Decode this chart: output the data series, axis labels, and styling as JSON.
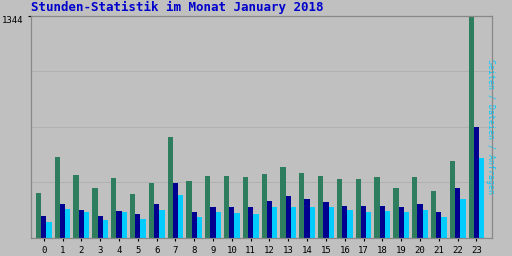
{
  "title": "Stunden-Statistik im Monat January 2018",
  "title_color": "#0000cc",
  "hours": [
    0,
    1,
    2,
    3,
    4,
    5,
    6,
    7,
    8,
    9,
    10,
    11,
    12,
    13,
    14,
    15,
    16,
    17,
    18,
    19,
    20,
    21,
    22,
    23
  ],
  "seiten": [
    270,
    490,
    380,
    300,
    365,
    265,
    335,
    610,
    345,
    375,
    375,
    368,
    385,
    430,
    395,
    375,
    355,
    358,
    368,
    305,
    368,
    285,
    468,
    1344
  ],
  "dateien": [
    135,
    205,
    170,
    135,
    165,
    145,
    205,
    335,
    155,
    185,
    185,
    185,
    225,
    255,
    235,
    215,
    195,
    195,
    195,
    190,
    205,
    155,
    305,
    670
  ],
  "anfragen": [
    95,
    178,
    155,
    110,
    155,
    115,
    170,
    260,
    125,
    158,
    150,
    145,
    190,
    185,
    185,
    185,
    170,
    158,
    165,
    158,
    170,
    125,
    235,
    485
  ],
  "color_seiten": "#2e7d5e",
  "color_dateien": "#000090",
  "color_anfragen": "#00ccff",
  "bg_color": "#c0c0c0",
  "plot_bg_color": "#c0c0c0",
  "ylabel_right": "Seiten / Dateien / Anfragen",
  "ymax": 1344,
  "bar_width": 0.28
}
